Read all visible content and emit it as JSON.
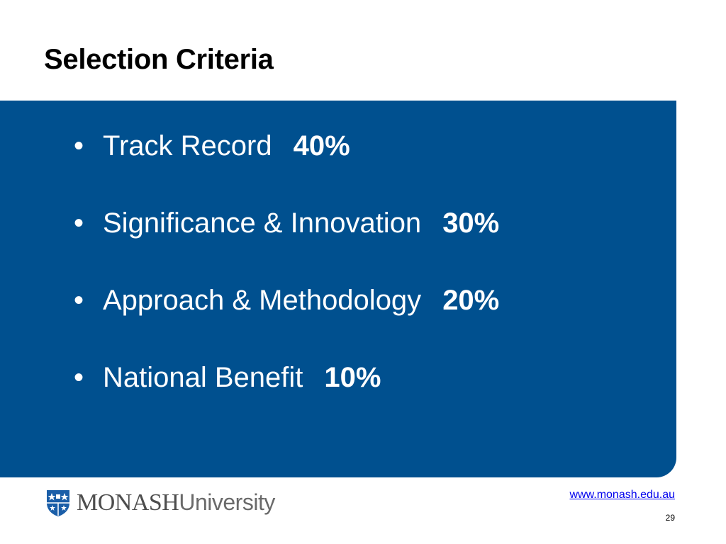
{
  "slide": {
    "title": "Selection Criteria",
    "bullet_glyph": "•",
    "criteria": [
      {
        "label": "Track Record",
        "percent": "40%"
      },
      {
        "label": "Significance & Innovation",
        "percent": "30%"
      },
      {
        "label": "Approach & Methodology",
        "percent": "20%"
      },
      {
        "label": "National Benefit",
        "percent": "10%"
      }
    ]
  },
  "footer": {
    "logo_primary": "MONASH",
    "logo_secondary": "University",
    "url": "www.monash.edu.au",
    "page_number": "29"
  },
  "colors": {
    "panel": "#00508f",
    "crest": "#1a5ea8"
  },
  "icons": {
    "crest": "university-crest-icon"
  }
}
